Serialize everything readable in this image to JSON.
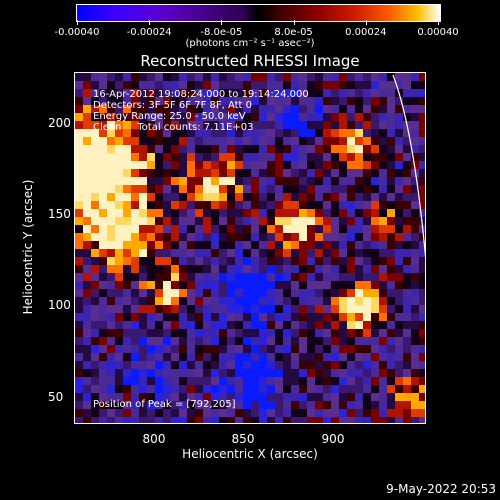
{
  "colorbar": {
    "tick_labels": [
      "-0.00040",
      "-0.00024",
      "-8.0e-05",
      "8.0e-05",
      "0.00024",
      "0.00040"
    ],
    "units": "(photons cm⁻² s⁻¹ asec⁻²)"
  },
  "title": "Reconstructed RHESSI Image",
  "annotations": {
    "time": "16-Apr-2012 19:08:24.000 to 19:14:24.000",
    "detectors": "Detectors: 3F 5F 6F 7F 8F, Att 0",
    "energy": "Energy Range: 25.0 - 50.0 keV",
    "method": "Clean     Total counts: 7.11E+03",
    "peak": "Position of Peak = [792,205]"
  },
  "axes": {
    "xlabel": "Heliocentric X (arcsec)",
    "ylabel": "Heliocentric Y (arcsec)",
    "x_ticks": [
      "800",
      "850",
      "900"
    ],
    "y_ticks": [
      "200",
      "150",
      "100",
      "50"
    ]
  },
  "footer": {
    "timestamp": "9-May-2022 20:53"
  }
}
